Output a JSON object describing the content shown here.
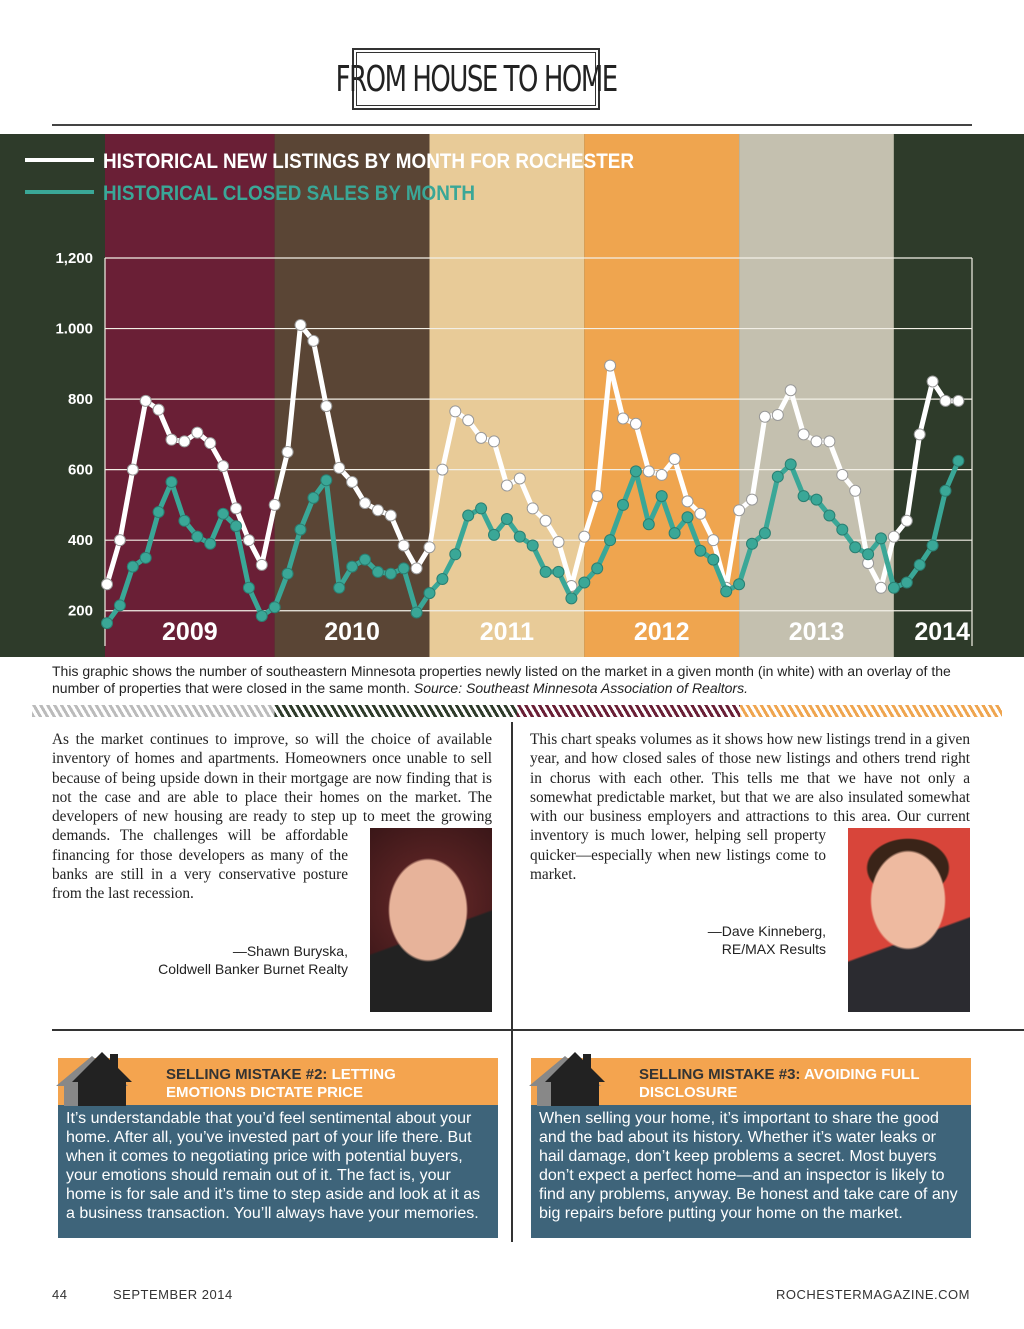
{
  "masthead": "FROM HOUSE TO HOME",
  "chart_data": {
    "type": "line",
    "series": [
      {
        "name": "HISTORICAL NEW LISTINGS BY MONTH FOR ROCHESTER",
        "color": "#ffffff",
        "values": [
          275,
          400,
          600,
          795,
          770,
          685,
          680,
          705,
          675,
          610,
          490,
          400,
          330,
          500,
          650,
          1010,
          965,
          780,
          605,
          565,
          505,
          485,
          470,
          385,
          320,
          380,
          600,
          765,
          740,
          690,
          680,
          555,
          575,
          490,
          455,
          395,
          270,
          410,
          525,
          895,
          745,
          730,
          595,
          585,
          630,
          510,
          475,
          400,
          265,
          485,
          515,
          750,
          755,
          825,
          700,
          680,
          680,
          585,
          540,
          335,
          265,
          410,
          455,
          700,
          850,
          795,
          795
        ]
      },
      {
        "name": "HISTORICAL CLOSED SALES BY MONTH",
        "color": "#3aa797",
        "values": [
          165,
          215,
          325,
          350,
          480,
          565,
          455,
          410,
          390,
          475,
          440,
          265,
          185,
          210,
          305,
          430,
          520,
          570,
          265,
          325,
          345,
          310,
          305,
          320,
          195,
          250,
          290,
          360,
          470,
          490,
          415,
          460,
          410,
          385,
          310,
          310,
          235,
          280,
          320,
          400,
          500,
          595,
          445,
          525,
          420,
          465,
          370,
          345,
          255,
          275,
          390,
          420,
          580,
          615,
          525,
          515,
          470,
          430,
          380,
          360,
          405,
          265,
          280,
          330,
          385,
          540,
          625
        ]
      }
    ],
    "year_bands": [
      {
        "label": "2009",
        "color": "#6a1f36"
      },
      {
        "label": "2010",
        "color": "#5a4535"
      },
      {
        "label": "2011",
        "color": "#e8cb98"
      },
      {
        "label": "2012",
        "color": "#efa54f"
      },
      {
        "label": "2013",
        "color": "#c4c0af"
      },
      {
        "label": "2014",
        "color": "#2e3b2a"
      }
    ],
    "ylim": [
      100,
      1200
    ],
    "yticks": [
      200,
      400,
      600,
      800,
      {
        "value": 1000,
        "label": "1.000"
      },
      {
        "value": 1200,
        "label": "1,200"
      }
    ],
    "grid": true
  },
  "caption": {
    "text": "This graphic shows the number of southeastern Minnesota properties newly listed on the market in a given month (in white) with an overlay of the number of properties that were closed in the same month.",
    "source": "Source: Southeast Minnesota Association of Realtors."
  },
  "quotes": [
    {
      "text": "As the market continues to improve, so will the choice of available inventory of homes and apartments. Homeowners once unable to sell because of being upside down in their mortgage are now finding that is not the case and are able to place their homes on the market. The developers of new housing are ready to step up to meet the growing demands. The challenges will be affordable financing for those developers as many of the banks are still in a very conservative posture from the last recession.",
      "name": "—Shawn Buryska,",
      "company": "Coldwell Banker Burnet Realty"
    },
    {
      "text": "This chart speaks volumes as it shows how new listings trend in a given year, and how closed sales of those new listings and others trend right in chorus with each other. This tells me that we have not only a somewhat predictable market, but that we are also insulated somewhat with our business employers and attractions to this area. Our current inventory is much lower, helping sell property quicker—especially when new listings come to market.",
      "name": "—Dave Kinneberg,",
      "company": "RE/MAX Results"
    }
  ],
  "tips": [
    {
      "label": "SELLING MISTAKE #2:",
      "title": "LETTING EMOTIONS DICTATE PRICE",
      "text": "It’s understandable that you’d feel sentimental about your home. After all, you’ve invested part of your life there. But when it comes to negotiating price with potential buyers, your emotions should remain out of it. The fact is, your home is for sale and it’s time to step aside and look at it as a business transaction. You’ll always have your memories."
    },
    {
      "label": "SELLING MISTAKE #3:",
      "title": "AVOIDING FULL DISCLOSURE",
      "text": "When selling your home, it’s important to share the good and the bad about its history. Whether it’s water leaks or hail damage, don’t keep problems a secret. Most buyers don’t expect a perfect home—and an inspector is likely to find any problems, anyway. Be honest and take care of any big repairs before putting your home on the market."
    }
  ],
  "footer": {
    "page": "44",
    "issue": "SEPTEMBER 2014",
    "site": "ROCHESTERMAGAZINE.COM"
  }
}
